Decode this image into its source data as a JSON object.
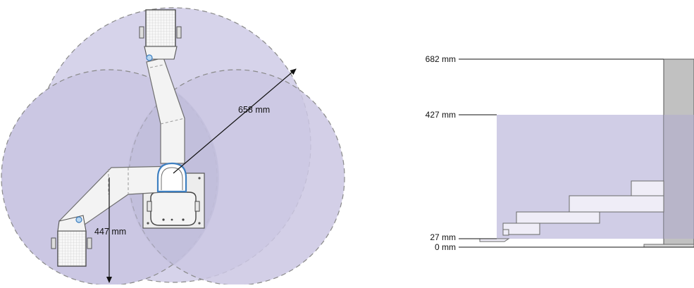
{
  "top_view": {
    "reach_label": "658 mm",
    "reach_label_2": "447 mm"
  },
  "side_view": {
    "levels": [
      {
        "id": "top",
        "label": "682 mm"
      },
      {
        "id": "work-top",
        "label": "427 mm"
      },
      {
        "id": "work-bottom",
        "label": "27 mm"
      },
      {
        "id": "base",
        "label": "0 mm"
      }
    ]
  },
  "colors": {
    "workspace_fill": "#cdcae3",
    "workspace_overlap": "#bdb9d8",
    "dashed_outline": "#8a8a8a",
    "robot_body": "#f2f2f2",
    "robot_outline": "#6f6f6f",
    "column_fill": "#bdbdbd",
    "accent_blue": "#3e7fc0"
  }
}
